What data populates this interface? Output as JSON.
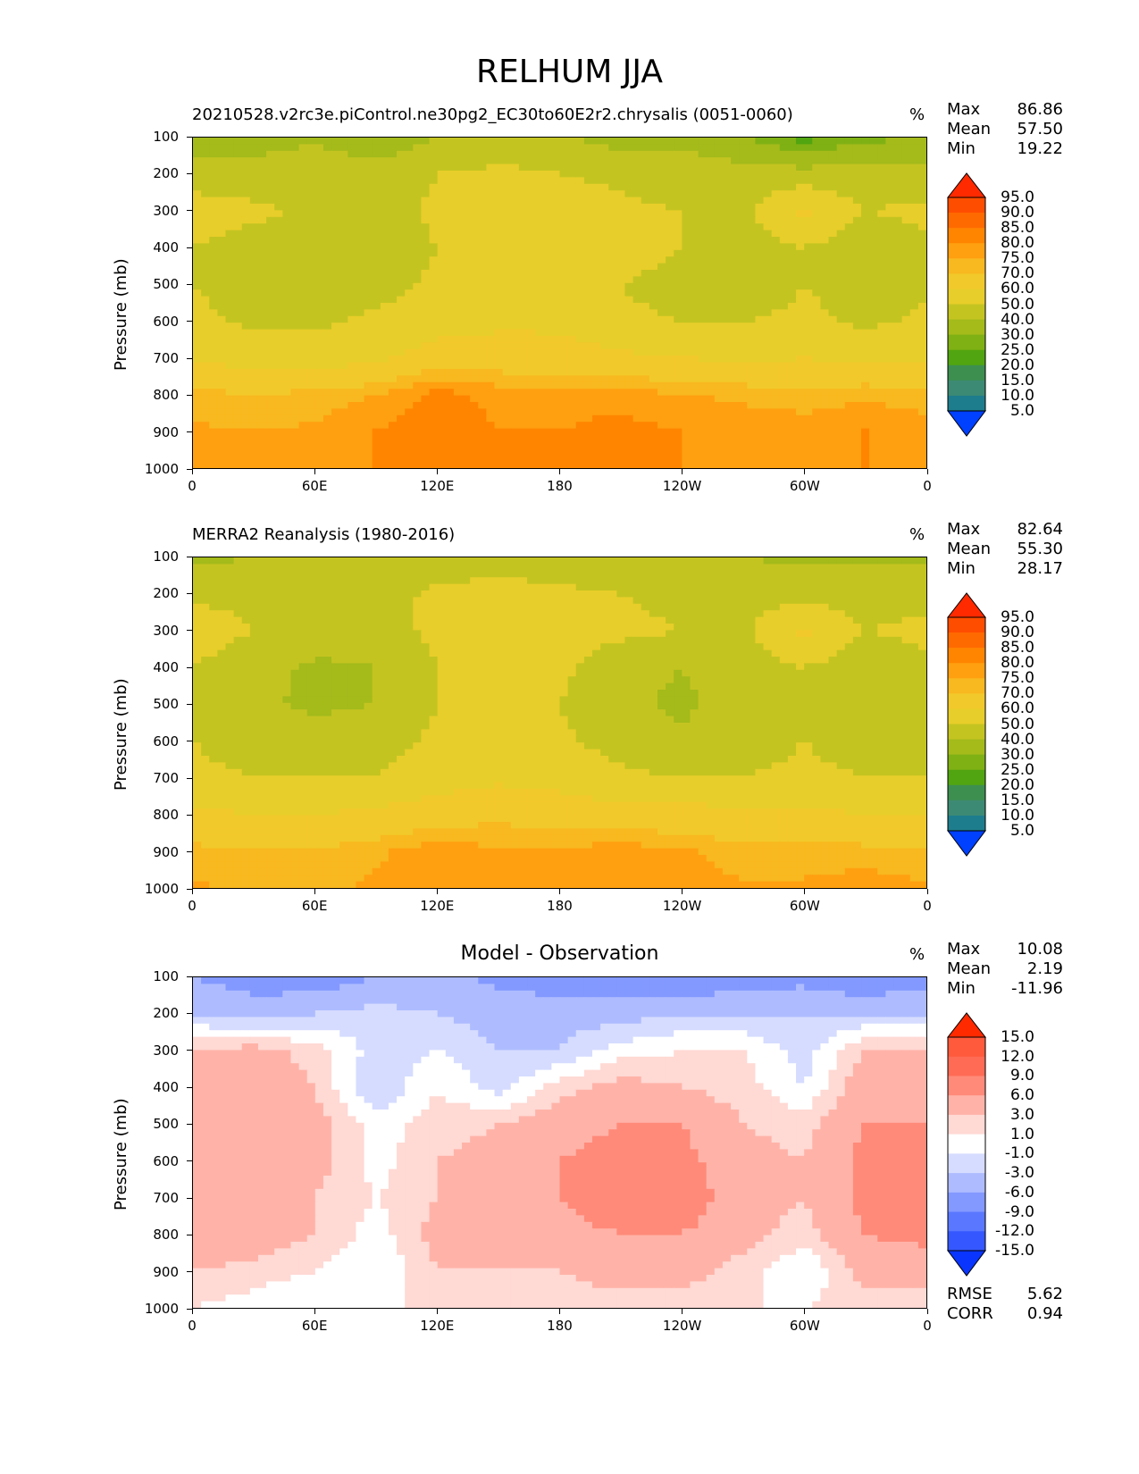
{
  "figure": {
    "title": "RELHUM JJA"
  },
  "panels": [
    {
      "title": "20210528.v2rc3e.piControl.ne30pg2_EC30to60E2r2.chrysalis (0051-0060)",
      "title_align": "left",
      "unit": "%",
      "stats": [
        {
          "label": "Max",
          "value": "86.86"
        },
        {
          "label": "Mean",
          "value": "57.50"
        },
        {
          "label": "Min",
          "value": "19.22"
        }
      ]
    },
    {
      "title": "MERRA2 Reanalysis (1980-2016)",
      "title_align": "left",
      "unit": "%",
      "stats": [
        {
          "label": "Max",
          "value": "82.64"
        },
        {
          "label": "Mean",
          "value": "55.30"
        },
        {
          "label": "Min",
          "value": "28.17"
        }
      ]
    },
    {
      "title": "Model - Observation",
      "title_align": "center",
      "unit": "%",
      "stats": [
        {
          "label": "Max",
          "value": "10.08"
        },
        {
          "label": "Mean",
          "value": "2.19"
        },
        {
          "label": "Min",
          "value": "-11.96"
        }
      ],
      "extra_stats": [
        {
          "label": "RMSE",
          "value": "5.62"
        },
        {
          "label": "CORR",
          "value": "0.94"
        }
      ]
    }
  ],
  "chart_data": [
    {
      "type": "heatmap",
      "title": "20210528.v2rc3e.piControl.ne30pg2_EC30to60E2r2.chrysalis (0051-0060)",
      "ylabel": "Pressure (mb)",
      "xlabel": "",
      "x_ticks": [
        "0",
        "60E",
        "120E",
        "180",
        "120W",
        "60W",
        "0"
      ],
      "y_ticks": [
        "100",
        "200",
        "300",
        "400",
        "500",
        "600",
        "700",
        "800",
        "900",
        "1000"
      ],
      "xlim": [
        0,
        360
      ],
      "ylim": [
        1000,
        100
      ],
      "colorbar_levels": [
        "95.0",
        "90.0",
        "85.0",
        "80.0",
        "75.0",
        "70.0",
        "60.0",
        "50.0",
        "40.0",
        "30.0",
        "25.0",
        "20.0",
        "15.0",
        "10.0",
        "5.0"
      ],
      "colorbar_colors": [
        "#ff2a00",
        "#ff4d00",
        "#ff6a00",
        "#ff8500",
        "#ffa010",
        "#f8b81f",
        "#f2c92a",
        "#e8ce2a",
        "#c4c421",
        "#a4bb1a",
        "#7fb114",
        "#51a510",
        "#3d8f50",
        "#3d8a74",
        "#1e7d8d",
        "#0063c6",
        "#0040ff"
      ],
      "field": [
        [
          32,
          35,
          38,
          32,
          40,
          45,
          42,
          35,
          38,
          30,
          22,
          28,
          30
        ],
        [
          45,
          45,
          48,
          45,
          50,
          52,
          50,
          48,
          45,
          45,
          44,
          44,
          45
        ],
        [
          55,
          52,
          48,
          46,
          52,
          55,
          55,
          52,
          50,
          48,
          62,
          50,
          52
        ],
        [
          50,
          46,
          44,
          44,
          50,
          55,
          55,
          55,
          50,
          46,
          50,
          44,
          48
        ],
        [
          50,
          46,
          45,
          46,
          52,
          55,
          56,
          50,
          46,
          44,
          50,
          46,
          48
        ],
        [
          52,
          48,
          48,
          52,
          55,
          58,
          58,
          52,
          50,
          50,
          52,
          48,
          52
        ],
        [
          58,
          56,
          55,
          58,
          65,
          65,
          64,
          62,
          60,
          58,
          60,
          58,
          58
        ],
        [
          72,
          70,
          72,
          75,
          82,
          78,
          78,
          78,
          75,
          74,
          72,
          74,
          72
        ],
        [
          76,
          75,
          76,
          80,
          84,
          80,
          80,
          82,
          80,
          78,
          78,
          80,
          78
        ],
        [
          80,
          78,
          78,
          80,
          82,
          80,
          80,
          82,
          80,
          78,
          78,
          80,
          80
        ]
      ]
    },
    {
      "type": "heatmap",
      "title": "MERRA2 Reanalysis (1980-2016)",
      "ylabel": "Pressure (mb)",
      "xlabel": "",
      "x_ticks": [
        "0",
        "60E",
        "120E",
        "180",
        "120W",
        "60W",
        "0"
      ],
      "y_ticks": [
        "100",
        "200",
        "300",
        "400",
        "500",
        "600",
        "700",
        "800",
        "900",
        "1000"
      ],
      "xlim": [
        0,
        360
      ],
      "ylim": [
        1000,
        100
      ],
      "colorbar_levels": [
        "95.0",
        "90.0",
        "85.0",
        "80.0",
        "75.0",
        "70.0",
        "60.0",
        "50.0",
        "40.0",
        "30.0",
        "25.0",
        "20.0",
        "15.0",
        "10.0",
        "5.0"
      ],
      "colorbar_colors": [
        "#ff2a00",
        "#ff4d00",
        "#ff6a00",
        "#ff8500",
        "#ffa010",
        "#f8b81f",
        "#f2c92a",
        "#e8ce2a",
        "#c4c421",
        "#a4bb1a",
        "#7fb114",
        "#51a510",
        "#3d8f50",
        "#3d8a74",
        "#1e7d8d",
        "#0063c6",
        "#0040ff"
      ],
      "field": [
        [
          38,
          40,
          42,
          40,
          45,
          45,
          44,
          42,
          42,
          40,
          38,
          38,
          38
        ],
        [
          48,
          48,
          48,
          46,
          52,
          54,
          52,
          50,
          48,
          48,
          46,
          46,
          48
        ],
        [
          55,
          50,
          46,
          46,
          52,
          55,
          55,
          52,
          50,
          48,
          62,
          50,
          52
        ],
        [
          50,
          44,
          38,
          40,
          50,
          55,
          52,
          44,
          40,
          46,
          50,
          44,
          48
        ],
        [
          48,
          42,
          38,
          40,
          50,
          55,
          50,
          42,
          38,
          44,
          48,
          40,
          46
        ],
        [
          50,
          46,
          44,
          46,
          52,
          55,
          52,
          46,
          42,
          46,
          50,
          46,
          48
        ],
        [
          52,
          50,
          50,
          50,
          55,
          58,
          56,
          52,
          50,
          50,
          52,
          50,
          50
        ],
        [
          62,
          60,
          60,
          62,
          66,
          68,
          66,
          64,
          64,
          62,
          62,
          60,
          60
        ],
        [
          72,
          70,
          70,
          74,
          78,
          76,
          76,
          78,
          76,
          72,
          72,
          72,
          70
        ],
        [
          76,
          74,
          74,
          76,
          78,
          76,
          78,
          80,
          78,
          76,
          76,
          78,
          76
        ]
      ]
    },
    {
      "type": "heatmap",
      "title": "Model - Observation",
      "ylabel": "Pressure (mb)",
      "xlabel": "",
      "x_ticks": [
        "0",
        "60E",
        "120E",
        "180",
        "120W",
        "60W",
        "0"
      ],
      "y_ticks": [
        "100",
        "200",
        "300",
        "400",
        "500",
        "600",
        "700",
        "800",
        "900",
        "1000"
      ],
      "xlim": [
        0,
        360
      ],
      "ylim": [
        1000,
        100
      ],
      "colorbar_levels": [
        "15.0",
        "12.0",
        "9.0",
        "6.0",
        "3.0",
        "1.0",
        "-1.0",
        "-3.0",
        "-6.0",
        "-9.0",
        "-12.0",
        "-15.0"
      ],
      "colorbar_colors": [
        "#ff2a00",
        "#ff5a3c",
        "#ff6b55",
        "#ff8a7a",
        "#ffb3a8",
        "#ffd9d4",
        "#ffffff",
        "#d6dcff",
        "#aebcff",
        "#8399ff",
        "#5a78ff",
        "#3457ff",
        "#0a35ff"
      ],
      "field": [
        [
          -6,
          -8,
          -8,
          -6,
          -5,
          -7,
          -8,
          -8,
          -9,
          -8,
          -7,
          -9,
          -7
        ],
        [
          -3,
          -4,
          -3,
          -2,
          -3,
          -4,
          -4,
          -4,
          -3,
          -3,
          -3,
          -3,
          -3
        ],
        [
          3,
          4,
          2,
          -2,
          -1,
          -3,
          -3,
          0,
          1,
          1,
          -2,
          3,
          3
        ],
        [
          4,
          5,
          3,
          -3,
          1,
          -2,
          2,
          4,
          3,
          2,
          -1,
          5,
          5
        ],
        [
          6,
          5,
          4,
          0,
          2,
          3,
          5,
          6,
          6,
          3,
          2,
          6,
          6
        ],
        [
          6,
          5,
          4,
          0,
          3,
          4,
          6,
          7,
          7,
          4,
          3,
          7,
          8
        ],
        [
          6,
          5,
          3,
          1,
          3,
          4,
          6,
          8,
          8,
          4,
          3,
          7,
          8
        ],
        [
          6,
          5,
          3,
          0,
          4,
          4,
          5,
          6,
          6,
          4,
          2,
          6,
          7
        ],
        [
          3,
          2,
          1,
          -1,
          3,
          3,
          3,
          4,
          4,
          2,
          -1,
          4,
          4
        ],
        [
          1,
          0,
          -1,
          0,
          2,
          2,
          2,
          2,
          2,
          1,
          1,
          2,
          2
        ]
      ]
    }
  ]
}
